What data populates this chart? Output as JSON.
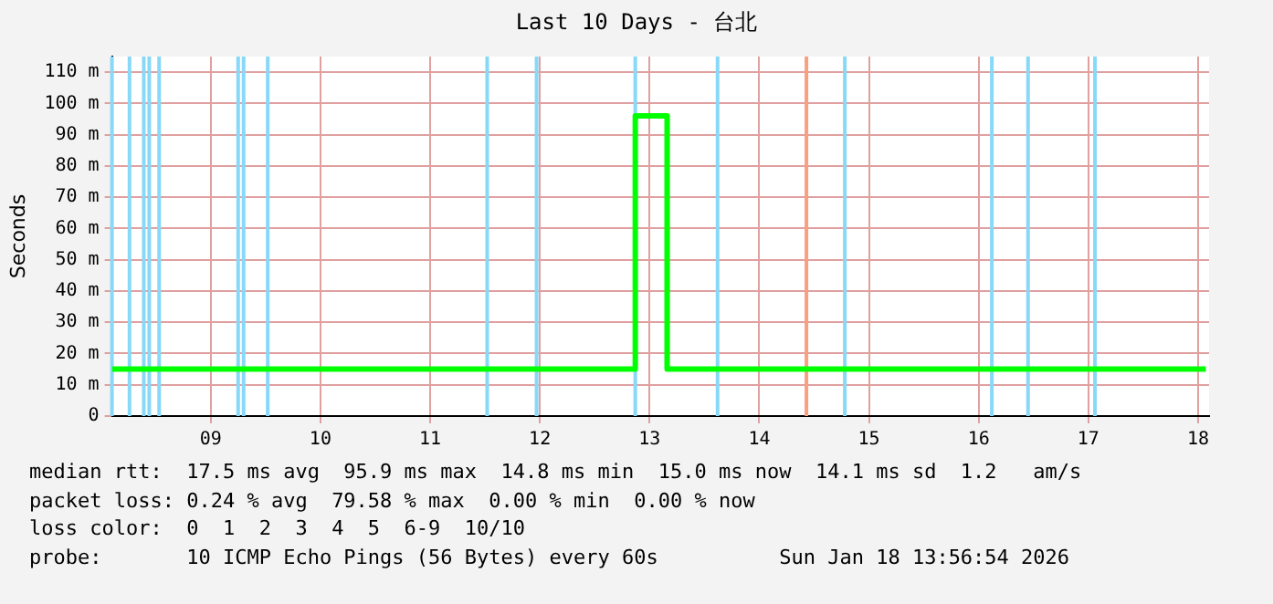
{
  "chart_data": {
    "type": "line",
    "title": "Last 10 Days - 台北",
    "ylabel": "Seconds",
    "x": [
      8.1,
      12.87,
      12.87,
      13.16,
      13.16,
      18.07
    ],
    "series": [
      {
        "color": "#00ff00",
        "values": [
          15,
          15,
          96,
          96,
          15,
          15
        ]
      }
    ],
    "xlim": [
      8.1,
      18.1
    ],
    "xticks": [
      {
        "value": 9,
        "label": "09"
      },
      10,
      11,
      12,
      13,
      14,
      15,
      16,
      17,
      18
    ],
    "ylim": [
      0,
      115
    ],
    "yticks": [
      0,
      {
        "value": 10,
        "label": "10 m"
      },
      {
        "value": 20,
        "label": "20 m"
      },
      {
        "value": 30,
        "label": "30 m"
      },
      {
        "value": 40,
        "label": "40 m"
      },
      {
        "value": 50,
        "label": "50 m"
      },
      {
        "value": 60,
        "label": "60 m"
      },
      {
        "value": 70,
        "label": "70 m"
      },
      {
        "value": 80,
        "label": "80 m"
      },
      {
        "value": 90,
        "label": "90 m"
      },
      {
        "value": 100,
        "label": "100 m"
      },
      {
        "value": 110,
        "label": "110 m"
      }
    ],
    "ref_lines": [
      {
        "axis": "x",
        "value": 8.1,
        "color": "#88d8f8"
      },
      {
        "axis": "x",
        "value": 8.26,
        "color": "#88d8f8"
      },
      {
        "axis": "x",
        "value": 8.39,
        "color": "#88d8f8"
      },
      {
        "axis": "x",
        "value": 8.44,
        "color": "#88d8f8"
      },
      {
        "axis": "x",
        "value": 8.53,
        "color": "#88d8f8"
      },
      {
        "axis": "x",
        "value": 9.25,
        "color": "#88d8f8"
      },
      {
        "axis": "x",
        "value": 9.3,
        "color": "#88d8f8"
      },
      {
        "axis": "x",
        "value": 9.52,
        "color": "#88d8f8"
      },
      {
        "axis": "x",
        "value": 11.52,
        "color": "#88d8f8"
      },
      {
        "axis": "x",
        "value": 11.97,
        "color": "#88d8f8"
      },
      {
        "axis": "x",
        "value": 12.87,
        "color": "#88d8f8"
      },
      {
        "axis": "x",
        "value": 13.62,
        "color": "#88d8f8"
      },
      {
        "axis": "x",
        "value": 14.43,
        "color": "#f8a080"
      },
      {
        "axis": "x",
        "value": 14.78,
        "color": "#88d8f8"
      },
      {
        "axis": "x",
        "value": 16.12,
        "color": "#88d8f8"
      },
      {
        "axis": "x",
        "value": 16.45,
        "color": "#88d8f8"
      },
      {
        "axis": "x",
        "value": 17.06,
        "color": "#88d8f8"
      }
    ],
    "grid": true,
    "legend": false,
    "annotations": [
      "median rtt:  17.5 ms avg  95.9 ms max  14.8 ms min  15.0 ms now  14.1 ms sd  1.2   am/s",
      "packet loss: 0.24 % avg  79.58 % max  0.00 % min  0.00 % now",
      "loss color:  0  1  2  3  4  5  6-9  10/10",
      "probe:       10 ICMP Echo Pings (56 Bytes) every 60s          Sun Jan 18 13:56:54 2026"
    ]
  }
}
